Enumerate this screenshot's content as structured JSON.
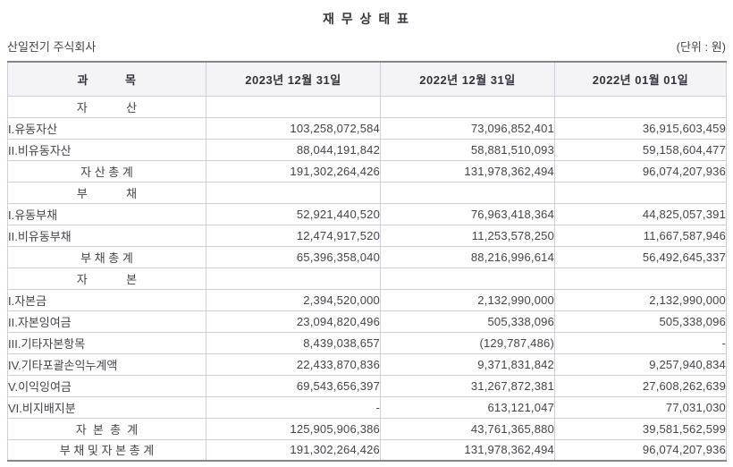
{
  "title": "재 무 상 태 표",
  "company": "산일전기 주식회사",
  "unit": "(단위 : 원)",
  "table": {
    "columns": [
      "과          목",
      "2023년 12월 31일",
      "2022년 12월 31일",
      "2022년 01월 01일"
    ],
    "rows": [
      {
        "label": "자            산",
        "type": "section",
        "values": [
          "",
          "",
          ""
        ]
      },
      {
        "label": "I.유동자산",
        "type": "item",
        "values": [
          "103,258,072,584",
          "73,096,852,401",
          "36,915,603,459"
        ]
      },
      {
        "label": "II.비유동자산",
        "type": "item",
        "values": [
          "88,044,191,842",
          "58,881,510,093",
          "59,158,604,477"
        ]
      },
      {
        "label": "자 산 총 계",
        "type": "total",
        "values": [
          "191,302,264,426",
          "131,978,362,494",
          "96,074,207,936"
        ]
      },
      {
        "label": "부            채",
        "type": "section",
        "values": [
          "",
          "",
          ""
        ]
      },
      {
        "label": "I.유동부채",
        "type": "item",
        "values": [
          "52,921,440,520",
          "76,963,418,364",
          "44,825,057,391"
        ]
      },
      {
        "label": "II.비유동부채",
        "type": "item",
        "values": [
          "12,474,917,520",
          "11,253,578,250",
          "11,667,587,946"
        ]
      },
      {
        "label": "부 채 총 계",
        "type": "total",
        "values": [
          "65,396,358,040",
          "88,216,996,614",
          "56,492,645,337"
        ]
      },
      {
        "label": "자            본",
        "type": "section",
        "values": [
          "",
          "",
          ""
        ]
      },
      {
        "label": "I.자본금",
        "type": "item",
        "values": [
          "2,394,520,000",
          "2,132,990,000",
          "2,132,990,000"
        ]
      },
      {
        "label": "II.자본잉여금",
        "type": "item",
        "values": [
          "23,094,820,496",
          "505,338,096",
          "505,338,096"
        ]
      },
      {
        "label": "III.기타자본항목",
        "type": "item",
        "values": [
          "8,439,038,657",
          "(129,787,486)",
          "-"
        ]
      },
      {
        "label": "IV.기타포괄손익누계액",
        "type": "item",
        "values": [
          "22,433,870,836",
          "9,371,831,842",
          "9,257,940,834"
        ]
      },
      {
        "label": "V.이익잉여금",
        "type": "item",
        "values": [
          "69,543,656,397",
          "31,267,872,381",
          "27,608,262,639"
        ]
      },
      {
        "label": "VI.비지배지분",
        "type": "item",
        "values": [
          "-",
          "613,121,047",
          "77,031,030"
        ]
      },
      {
        "label": "자  본  총  계",
        "type": "total",
        "values": [
          "125,905,906,386",
          "43,761,365,880",
          "39,581,562,599"
        ]
      },
      {
        "label": "부 채 및 자 본 총 계",
        "type": "total",
        "values": [
          "191,302,264,426",
          "131,978,362,494",
          "96,074,207,936"
        ]
      }
    ]
  }
}
